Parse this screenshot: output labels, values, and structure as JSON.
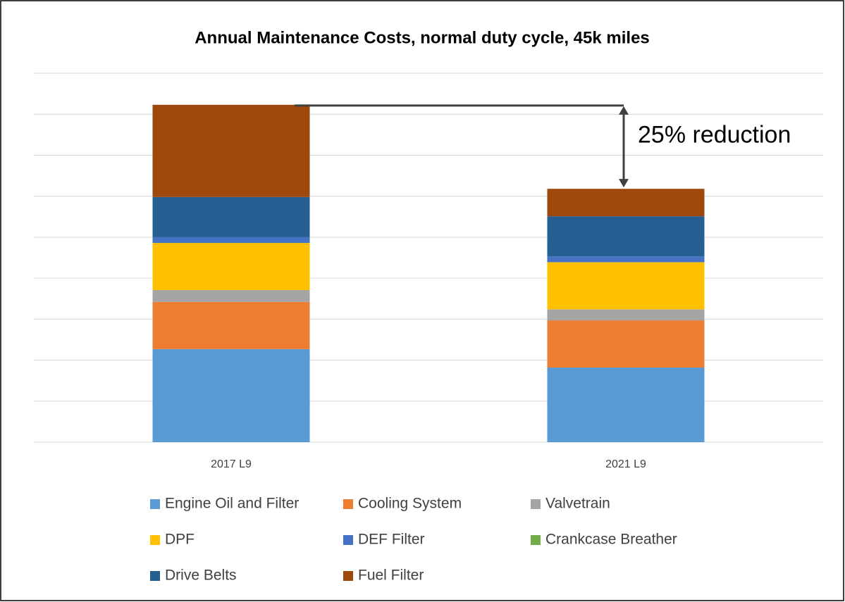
{
  "chart_data": {
    "type": "stacked_bar",
    "title": "Annual Maintenance Costs, normal duty cycle, 45k miles",
    "annotation": "25% reduction",
    "categories": [
      "2017 L9",
      "2021 L9"
    ],
    "series": [
      {
        "name": "Engine Oil and Filter",
        "color": "#5b9bd5",
        "values": [
          2.27,
          1.82
        ]
      },
      {
        "name": "Cooling System",
        "color": "#ed7d31",
        "values": [
          1.15,
          1.15
        ]
      },
      {
        "name": "Valvetrain",
        "color": "#a5a5a5",
        "values": [
          0.29,
          0.27
        ]
      },
      {
        "name": "DPF",
        "color": "#ffc000",
        "values": [
          1.15,
          1.15
        ]
      },
      {
        "name": "DEF Filter",
        "color": "#4472c4",
        "values": [
          0.14,
          0.14
        ]
      },
      {
        "name": "Crankcase Breather",
        "color": "#70ad47",
        "values": [
          0,
          0
        ]
      },
      {
        "name": "Drive Belts",
        "color": "#255e91",
        "values": [
          0.98,
          0.98
        ]
      },
      {
        "name": "Fuel Filter",
        "color": "#9e480e",
        "values": [
          2.25,
          0.67
        ]
      }
    ],
    "ylim": [
      0,
      9
    ],
    "yticks": [
      0,
      1,
      2,
      3,
      4,
      5,
      6,
      7,
      8,
      9
    ],
    "grid": true
  }
}
